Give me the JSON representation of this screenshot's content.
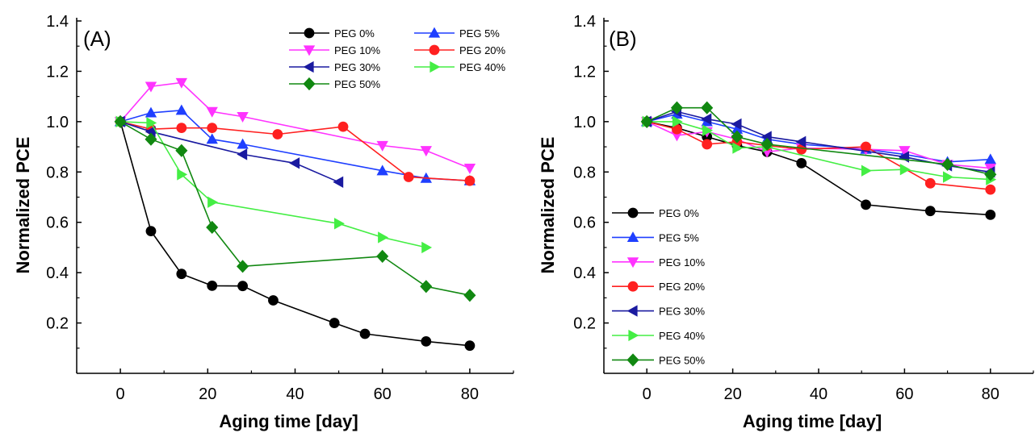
{
  "chart_data": [
    {
      "type": "line",
      "panel_label": "(A)",
      "xlabel": "Aging time [day]",
      "ylabel": "Normalized PCE",
      "xlim": [
        -10,
        90
      ],
      "ylim": [
        0.0,
        1.4
      ],
      "xticks": [
        "0",
        "20",
        "40",
        "60",
        "80"
      ],
      "yticks": [
        "0.2",
        "0.4",
        "0.6",
        "0.8",
        "1.0",
        "1.2",
        "1.4"
      ],
      "legend_position": "top-right, two columns",
      "series": [
        {
          "name": "PEG 0%",
          "color": "#000000",
          "marker": "circle",
          "x": [
            0,
            7,
            14,
            21,
            28,
            35,
            49,
            56,
            70,
            80
          ],
          "y": [
            1.0,
            0.565,
            0.395,
            0.348,
            0.347,
            0.29,
            0.2,
            0.157,
            0.127,
            0.11
          ]
        },
        {
          "name": "PEG 5%",
          "color": "#1f3fff",
          "marker": "triangle-up",
          "x": [
            0,
            7,
            14,
            21,
            28,
            60,
            70,
            80
          ],
          "y": [
            1.0,
            1.035,
            1.045,
            0.93,
            0.91,
            0.805,
            0.775,
            0.765
          ]
        },
        {
          "name": "PEG 10%",
          "color": "#ff33ff",
          "marker": "triangle-down",
          "x": [
            0,
            7,
            14,
            21,
            28,
            60,
            70,
            80
          ],
          "y": [
            1.0,
            1.14,
            1.155,
            1.04,
            1.02,
            0.905,
            0.885,
            0.815
          ]
        },
        {
          "name": "PEG 20%",
          "color": "#ff2020",
          "marker": "circle",
          "x": [
            0,
            7,
            14,
            21,
            36,
            51,
            66,
            80
          ],
          "y": [
            1.0,
            0.97,
            0.975,
            0.975,
            0.95,
            0.98,
            0.78,
            0.765
          ]
        },
        {
          "name": "PEG 30%",
          "color": "#1a1aa0",
          "marker": "triangle-left",
          "x": [
            0,
            7,
            28,
            40,
            50
          ],
          "y": [
            1.0,
            0.96,
            0.87,
            0.835,
            0.76
          ]
        },
        {
          "name": "PEG 40%",
          "color": "#44ee44",
          "marker": "triangle-right",
          "x": [
            0,
            7,
            14,
            21,
            50,
            60,
            70
          ],
          "y": [
            1.0,
            0.995,
            0.79,
            0.68,
            0.595,
            0.54,
            0.5
          ]
        },
        {
          "name": "PEG 50%",
          "color": "#118811",
          "marker": "diamond",
          "x": [
            0,
            7,
            14,
            21,
            28,
            60,
            70,
            80
          ],
          "y": [
            1.0,
            0.93,
            0.885,
            0.58,
            0.425,
            0.465,
            0.345,
            0.31
          ]
        }
      ]
    },
    {
      "type": "line",
      "panel_label": "(B)",
      "xlabel": "Aging time [day]",
      "ylabel": "Normalized PCE",
      "xlim": [
        -10,
        90
      ],
      "ylim": [
        0.0,
        1.4
      ],
      "xticks": [
        "0",
        "20",
        "40",
        "60",
        "80"
      ],
      "yticks": [
        "0.2",
        "0.4",
        "0.6",
        "0.8",
        "1.0",
        "1.2",
        "1.4"
      ],
      "legend_position": "bottom-left, one column",
      "series": [
        {
          "name": "PEG 0%",
          "color": "#000000",
          "marker": "circle",
          "x": [
            0,
            7,
            14,
            21,
            28,
            36,
            51,
            66,
            80
          ],
          "y": [
            1.0,
            0.975,
            0.94,
            0.905,
            0.88,
            0.835,
            0.67,
            0.645,
            0.63
          ]
        },
        {
          "name": "PEG 5%",
          "color": "#1f3fff",
          "marker": "triangle-up",
          "x": [
            0,
            7,
            14,
            21,
            28,
            36,
            51,
            60,
            70,
            80
          ],
          "y": [
            1.0,
            1.03,
            1.0,
            0.97,
            0.93,
            0.91,
            0.89,
            0.87,
            0.84,
            0.85
          ]
        },
        {
          "name": "PEG 10%",
          "color": "#ff33ff",
          "marker": "triangle-down",
          "x": [
            0,
            7,
            14,
            21,
            28,
            36,
            51,
            60,
            70,
            80
          ],
          "y": [
            1.0,
            0.945,
            0.96,
            0.93,
            0.88,
            0.895,
            0.89,
            0.885,
            0.83,
            0.815
          ]
        },
        {
          "name": "PEG 20%",
          "color": "#ff2020",
          "marker": "circle",
          "x": [
            0,
            7,
            14,
            21,
            28,
            36,
            51,
            66,
            80
          ],
          "y": [
            1.0,
            0.97,
            0.91,
            0.92,
            0.905,
            0.89,
            0.9,
            0.755,
            0.73
          ]
        },
        {
          "name": "PEG 30%",
          "color": "#1a1aa0",
          "marker": "triangle-left",
          "x": [
            0,
            7,
            14,
            21,
            28,
            36,
            60,
            70,
            80
          ],
          "y": [
            1.0,
            1.04,
            1.01,
            0.99,
            0.94,
            0.92,
            0.86,
            0.825,
            0.8
          ]
        },
        {
          "name": "PEG 40%",
          "color": "#44ee44",
          "marker": "triangle-right",
          "x": [
            0,
            7,
            14,
            21,
            28,
            51,
            60,
            70,
            80
          ],
          "y": [
            1.0,
            1.0,
            0.965,
            0.895,
            0.9,
            0.805,
            0.81,
            0.78,
            0.77
          ]
        },
        {
          "name": "PEG 50%",
          "color": "#118811",
          "marker": "diamond",
          "x": [
            0,
            7,
            14,
            21,
            28,
            70,
            80
          ],
          "y": [
            1.0,
            1.055,
            1.055,
            0.94,
            0.91,
            0.83,
            0.79
          ]
        }
      ]
    }
  ]
}
